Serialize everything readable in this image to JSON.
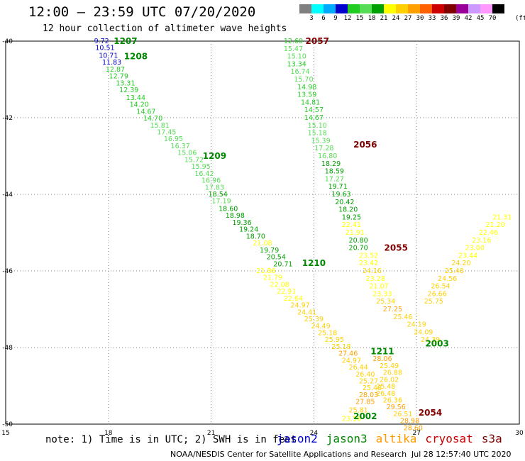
{
  "header": {
    "title": "12:00 – 23:59 UTC 07/20/2020",
    "subtitle": "12 hour collection of altimeter wave heights"
  },
  "colorbar": {
    "colors": [
      "#808080",
      "#00ffff",
      "#00aaff",
      "#0000cc",
      "#22cc22",
      "#55dd55",
      "#00a000",
      "#ffff00",
      "#ffd000",
      "#ffa000",
      "#ff6000",
      "#cc0000",
      "#800000",
      "#990099",
      "#cc99ff",
      "#ff99ff",
      "#000000"
    ],
    "labels": [
      "3",
      "6",
      "9",
      "12",
      "15",
      "18",
      "21",
      "24",
      "27",
      "30",
      "33",
      "36",
      "39",
      "42",
      "45",
      "70"
    ],
    "units": "(ft)"
  },
  "note": "note: 1) Time is in UTC; 2) SWH is in feet",
  "satellites": [
    {
      "name": "jason2",
      "color": "#0000cc"
    },
    {
      "name": "jason3",
      "color": "#008800"
    },
    {
      "name": "altika",
      "color": "#ff9900"
    },
    {
      "name": "cryosat",
      "color": "#cc0000"
    },
    {
      "name": "s3a",
      "color": "#800000"
    }
  ],
  "footer": {
    "credit": "NOAA/NESDIS Center for Satellite Applications and Research",
    "timestamp": "Jul 28 12:57:40 UTC 2020"
  },
  "chart_data": {
    "type": "scatter",
    "xlim": [
      15,
      30
    ],
    "ylim": [
      -50,
      -40
    ],
    "xticks": [
      "15",
      "18",
      "21",
      "24",
      "27",
      "30"
    ],
    "yticks": [
      "-40",
      "-42",
      "-44",
      "-46",
      "-48",
      "-50"
    ],
    "grid": "dotted",
    "tracks": [
      {
        "name": "1207",
        "label_x": 18.5,
        "label_y": -40.0,
        "label_color": "#008800",
        "points": [
          [
            17.8,
            -40.0,
            9.72
          ],
          [
            17.9,
            -40.18,
            10.51
          ],
          [
            18.0,
            -40.38,
            10.71
          ],
          [
            18.1,
            -40.56,
            11.83
          ],
          [
            18.2,
            -40.74,
            12.87
          ],
          [
            18.3,
            -40.92,
            12.79
          ],
          [
            18.5,
            -41.1,
            13.31
          ],
          [
            18.6,
            -41.28,
            12.39
          ],
          [
            18.8,
            -41.48,
            13.44
          ],
          [
            18.9,
            -41.66,
            14.2
          ],
          [
            19.1,
            -41.84,
            14.67
          ],
          [
            19.3,
            -42.02,
            14.7
          ],
          [
            19.5,
            -42.2,
            15.81
          ],
          [
            19.7,
            -42.38,
            17.45
          ],
          [
            19.9,
            -42.56,
            16.95
          ],
          [
            20.1,
            -42.74,
            16.37
          ],
          [
            20.3,
            -42.92,
            15.06
          ],
          [
            20.5,
            -43.1,
            15.72
          ],
          [
            20.7,
            -43.28,
            15.95
          ],
          [
            20.8,
            -43.46,
            16.42
          ],
          [
            21.0,
            -43.64,
            16.96
          ],
          [
            21.1,
            -43.82,
            17.83
          ],
          [
            21.2,
            -44.0,
            18.54
          ],
          [
            21.3,
            -44.18,
            17.19
          ],
          [
            21.5,
            -44.38,
            18.6
          ],
          [
            21.7,
            -44.56,
            18.98
          ],
          [
            21.9,
            -44.74,
            19.36
          ],
          [
            22.1,
            -44.92,
            19.24
          ],
          [
            22.3,
            -45.1,
            18.7
          ],
          [
            22.5,
            -45.28,
            21.08
          ],
          [
            22.7,
            -45.46,
            19.79
          ],
          [
            22.9,
            -45.64,
            20.54
          ],
          [
            23.1,
            -45.82,
            20.71
          ]
        ]
      },
      {
        "name": "1208",
        "label_x": 18.8,
        "label_y": -40.4,
        "label_color": "#008800",
        "points": []
      },
      {
        "name": "1209",
        "label_x": 21.1,
        "label_y": -43.0,
        "label_color": "#008800",
        "points": []
      },
      {
        "name": "1210",
        "label_x": 24.0,
        "label_y": -45.8,
        "label_color": "#008800",
        "points": [
          [
            22.6,
            -46.0,
            21.86
          ],
          [
            22.8,
            -46.18,
            21.79
          ],
          [
            23.0,
            -46.36,
            22.08
          ],
          [
            23.2,
            -46.54,
            22.91
          ],
          [
            23.4,
            -46.72,
            22.64
          ],
          [
            23.6,
            -46.9,
            24.97
          ],
          [
            23.8,
            -47.08,
            24.41
          ],
          [
            24.0,
            -47.26,
            25.39
          ],
          [
            24.2,
            -47.44,
            24.49
          ],
          [
            24.4,
            -47.62,
            25.18
          ],
          [
            24.6,
            -47.8,
            25.95
          ],
          [
            24.8,
            -47.98,
            25.18
          ],
          [
            25.0,
            -48.16,
            27.46
          ],
          [
            25.1,
            -48.34,
            24.97
          ],
          [
            25.3,
            -48.52,
            26.44
          ],
          [
            25.5,
            -48.7,
            26.4
          ],
          [
            25.6,
            -48.88,
            25.27
          ],
          [
            25.7,
            -49.06,
            25.48
          ],
          [
            25.6,
            -49.24,
            28.03
          ],
          [
            25.5,
            -49.42,
            27.85
          ],
          [
            25.3,
            -49.64,
            25.81
          ],
          [
            25.1,
            -49.86,
            23.56
          ]
        ]
      },
      {
        "name": "1211",
        "label_x": 26.0,
        "label_y": -48.1,
        "label_color": "#008800",
        "points": [
          [
            26.0,
            -48.3,
            28.06
          ],
          [
            26.2,
            -48.48,
            25.49
          ],
          [
            26.3,
            -48.66,
            26.88
          ],
          [
            26.2,
            -48.84,
            26.02
          ],
          [
            26.1,
            -49.02,
            25.48
          ],
          [
            26.1,
            -49.2,
            26.48
          ],
          [
            26.3,
            -49.38,
            26.36
          ],
          [
            26.4,
            -49.56,
            29.56
          ],
          [
            26.6,
            -49.74,
            26.51
          ],
          [
            26.8,
            -49.92,
            28.98
          ],
          [
            26.9,
            -50.1,
            28.6
          ]
        ]
      },
      {
        "name": "2057",
        "label_x": 24.1,
        "label_y": -40.0,
        "label_color": "#800000",
        "points": [
          [
            23.4,
            -40.0,
            12.6
          ],
          [
            23.4,
            -40.2,
            15.47
          ],
          [
            23.5,
            -40.4,
            15.1
          ],
          [
            23.5,
            -40.6,
            13.34
          ],
          [
            23.6,
            -40.8,
            16.74
          ],
          [
            23.7,
            -41.0,
            15.7
          ],
          [
            23.8,
            -41.2,
            14.98
          ],
          [
            23.8,
            -41.4,
            13.59
          ],
          [
            23.9,
            -41.6,
            14.81
          ],
          [
            24.0,
            -41.8,
            14.57
          ],
          [
            24.0,
            -42.0,
            14.67
          ],
          [
            24.1,
            -42.2,
            15.1
          ],
          [
            24.1,
            -42.4,
            15.18
          ],
          [
            24.2,
            -42.6,
            15.39
          ],
          [
            24.3,
            -42.8,
            17.28
          ],
          [
            24.4,
            -43.0,
            16.8
          ],
          [
            24.5,
            -43.2,
            18.29
          ],
          [
            24.6,
            -43.4,
            18.59
          ],
          [
            24.6,
            -43.6,
            17.27
          ],
          [
            24.7,
            -43.8,
            19.71
          ],
          [
            24.8,
            -44.0,
            19.63
          ],
          [
            24.9,
            -44.2,
            20.42
          ],
          [
            25.0,
            -44.4,
            18.2
          ],
          [
            25.1,
            -44.6,
            19.25
          ],
          [
            25.1,
            -44.8,
            22.41
          ],
          [
            25.2,
            -45.0,
            21.91
          ],
          [
            25.3,
            -45.2,
            20.8
          ],
          [
            25.3,
            -45.4,
            20.7
          ]
        ]
      },
      {
        "name": "2056",
        "label_x": 25.5,
        "label_y": -42.7,
        "label_color": "#800000",
        "points": []
      },
      {
        "name": "2055",
        "label_x": 26.4,
        "label_y": -45.4,
        "label_color": "#800000",
        "points": [
          [
            25.6,
            -45.6,
            23.52
          ],
          [
            25.6,
            -45.8,
            23.42
          ],
          [
            25.7,
            -46.0,
            24.16
          ],
          [
            25.8,
            -46.2,
            23.28
          ],
          [
            25.9,
            -46.4,
            21.07
          ],
          [
            26.0,
            -46.6,
            23.33
          ],
          [
            26.1,
            -46.8,
            25.34
          ],
          [
            26.3,
            -47.0,
            27.25
          ],
          [
            26.6,
            -47.2,
            25.46
          ],
          [
            27.0,
            -47.4,
            24.19
          ],
          [
            27.2,
            -47.6,
            24.09
          ],
          [
            27.4,
            -47.8,
            24.39
          ]
        ]
      },
      {
        "name": "2003",
        "label_x": 27.6,
        "label_y": -47.9,
        "label_color": "#008800",
        "points": [
          [
            27.5,
            -46.8,
            25.75
          ],
          [
            27.6,
            -46.6,
            26.66
          ],
          [
            27.7,
            -46.4,
            26.54
          ],
          [
            27.9,
            -46.2,
            24.56
          ],
          [
            28.1,
            -46.0,
            25.48
          ],
          [
            28.3,
            -45.8,
            24.2
          ],
          [
            28.5,
            -45.6,
            23.44
          ],
          [
            28.7,
            -45.4,
            23.0
          ],
          [
            28.9,
            -45.2,
            23.16
          ],
          [
            29.1,
            -45.0,
            22.46
          ],
          [
            29.3,
            -44.8,
            21.2
          ],
          [
            29.5,
            -44.6,
            21.31
          ]
        ]
      },
      {
        "name": "2054",
        "label_x": 27.4,
        "label_y": -49.7,
        "label_color": "#800000",
        "points": []
      },
      {
        "name": "2002",
        "label_x": 25.5,
        "label_y": -49.8,
        "label_color": "#008800",
        "points": []
      }
    ]
  }
}
